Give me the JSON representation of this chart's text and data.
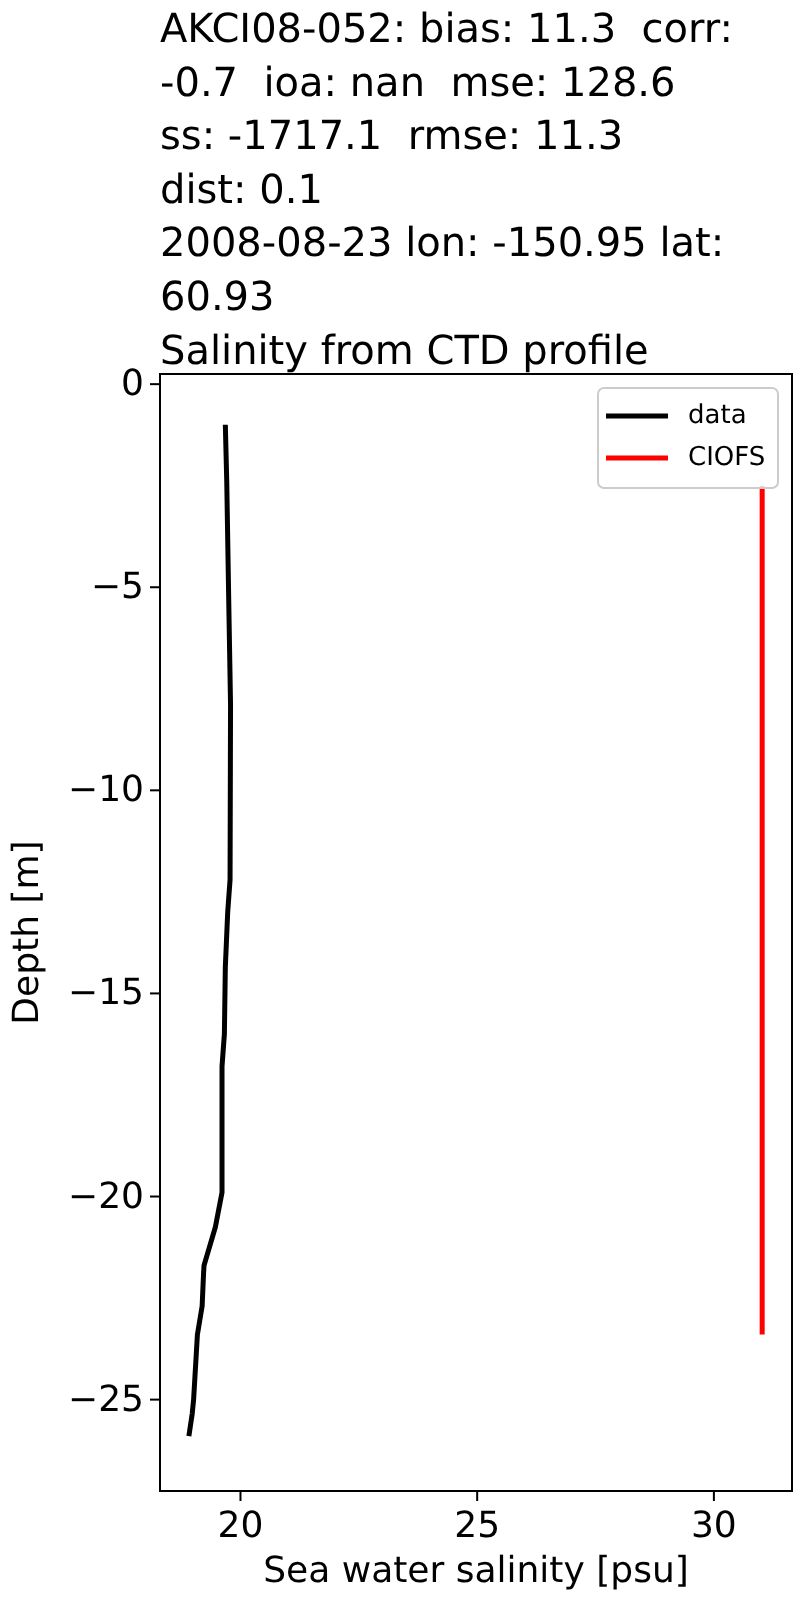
{
  "chart_data": {
    "type": "line",
    "title": "AKCI08-052: bias: 11.3  corr:\n-0.7  ioa: nan  mse: 128.6\nss: -1717.1  rmse: 11.3\ndist: 0.1\n2008-08-23 lon: -150.95 lat:\n60.93\nSalinity from CTD profile",
    "xlabel": "Sea water salinity [psu]",
    "ylabel": "Depth [m]",
    "series": [
      {
        "name": "data",
        "color": "#000000",
        "x": [
          19.68,
          19.71,
          19.75,
          19.79,
          19.78,
          19.73,
          19.68,
          19.66,
          19.61,
          19.61,
          19.47,
          19.23,
          19.22,
          19.19,
          19.09,
          19.01,
          18.98,
          18.91
        ],
        "values": [
          -1.0,
          -2.4,
          -5.2,
          -7.9,
          -12.2,
          -13.0,
          -14.35,
          -16.0,
          -16.8,
          -19.9,
          -20.75,
          -21.7,
          -21.9,
          -22.7,
          -23.4,
          -25.0,
          -25.35,
          -25.9
        ]
      },
      {
        "name": "CIOFS",
        "color": "#ff0000",
        "x": [
          31.02,
          31.02
        ],
        "values": [
          -2.5,
          -23.4
        ]
      }
    ],
    "xlim": [
      18.3,
      31.65
    ],
    "ylim": [
      -27.25,
      0.25
    ],
    "xticks": [
      20,
      25,
      30
    ],
    "yticks": [
      0,
      {
        "value": -5,
        "label": "−5"
      },
      {
        "value": -10,
        "label": "−10"
      },
      {
        "value": -15,
        "label": "−15"
      },
      {
        "value": -20,
        "label": "−20"
      },
      {
        "value": -25,
        "label": "−25"
      }
    ],
    "legend": "top right"
  }
}
